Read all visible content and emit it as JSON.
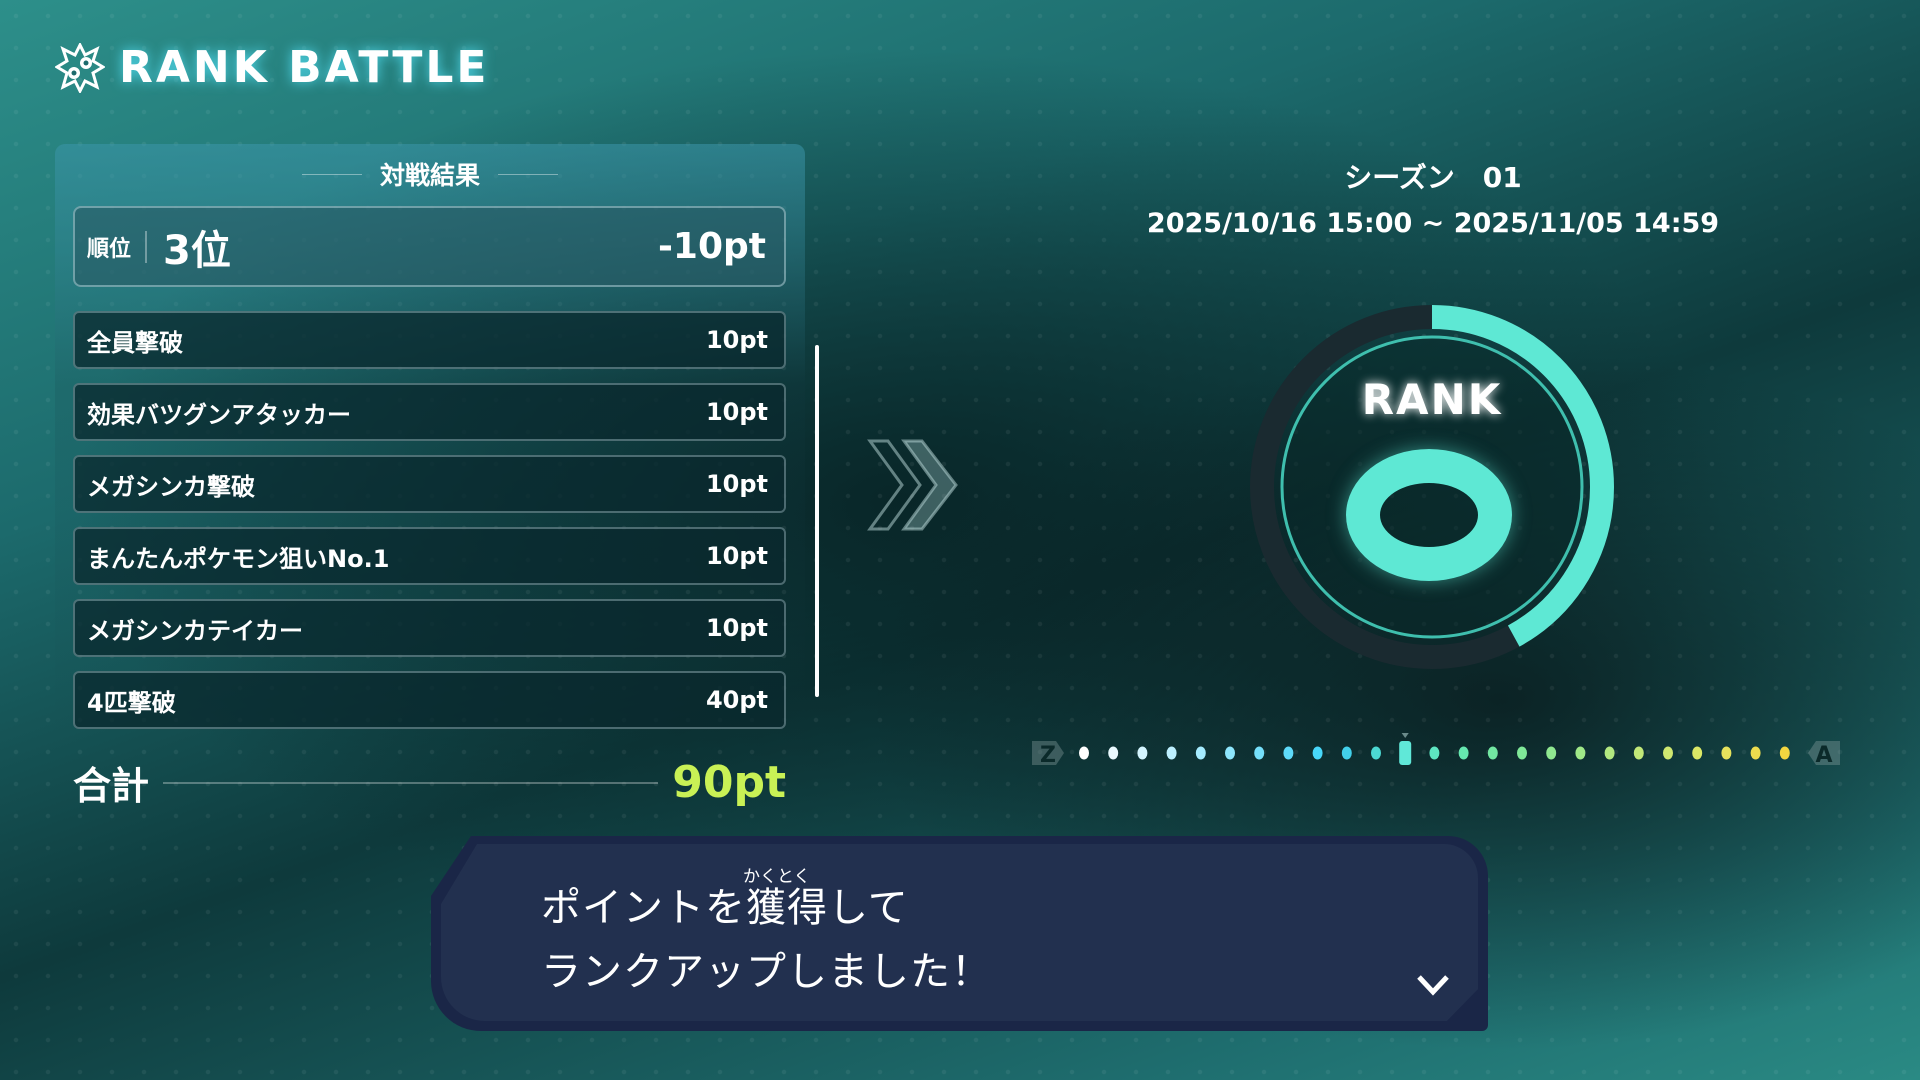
{
  "header": {
    "title": "RANK BATTLE",
    "icon": "rank-battle-emblem-icon"
  },
  "results": {
    "heading": "対戦結果",
    "placement": {
      "label": "順位",
      "value": "3位",
      "points": "-10pt"
    },
    "items": [
      {
        "label": "全員撃破",
        "points": "10pt"
      },
      {
        "label": "効果バツグンアタッカー",
        "points": "10pt"
      },
      {
        "label": "メガシンカ撃破",
        "points": "10pt"
      },
      {
        "label": "まんたんポケモン狙いNo.1",
        "points": "10pt"
      },
      {
        "label": "メガシンカテイカー",
        "points": "10pt"
      },
      {
        "label": "4匹撃破",
        "points": "40pt"
      }
    ],
    "total": {
      "label": "合計",
      "value": "90pt",
      "color": "#c9f155"
    }
  },
  "season": {
    "label": "シーズン　01",
    "period": "2025/10/16 15:00 ~ 2025/11/05 14:59"
  },
  "rank": {
    "label": "RANK",
    "value": "O",
    "progress_percent": 42,
    "accent": "#5ee8d4"
  },
  "rank_scale": {
    "low": "Z",
    "high": "A",
    "current_index": 11,
    "dot_colors": [
      "#ffffff",
      "#eafaff",
      "#d4f5ff",
      "#bdf0ff",
      "#a6ecff",
      "#8ee6fc",
      "#76e0fb",
      "#5edbfa",
      "#48d8fa",
      "#42d0ea",
      "#4cd8d2",
      "#60e8d8",
      "#5ee6c2",
      "#66e8b0",
      "#72e8a2",
      "#80e898",
      "#90e890",
      "#a0e888",
      "#b2e880",
      "#c2e878",
      "#d0e870",
      "#dce866",
      "#e6e25c",
      "#ecdc4e",
      "#f2d640"
    ]
  },
  "dialog": {
    "line1": "ポイントを獲得して",
    "line2": "ランクアップしました！",
    "ruby": "かくとく",
    "continue_icon": "chevron-down-icon"
  }
}
